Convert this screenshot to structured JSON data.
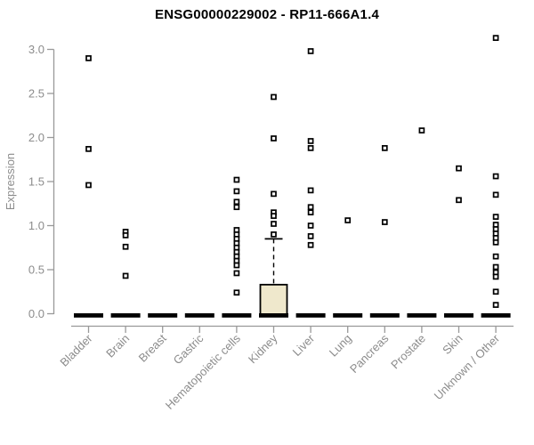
{
  "chart_data": {
    "type": "boxplot-scatter",
    "title": "ENSG00000229002 - RP11-666A1.4",
    "ylabel": "Expression",
    "ylim": [
      0.0,
      3.0
    ],
    "ytick_labels": [
      "0.0",
      "0.5",
      "1.0",
      "1.5",
      "2.0",
      "2.5",
      "3.0"
    ],
    "grid": false,
    "legend": "none",
    "categories": [
      "Bladder",
      "Brain",
      "Breast",
      "Gastric",
      "Hematopoietic cells",
      "Kidney",
      "Liver",
      "Lung",
      "Pancreas",
      "Prostate",
      "Skin",
      "Unknown / Other"
    ],
    "medians": [
      0,
      0,
      0,
      0,
      0,
      0,
      0,
      0,
      0,
      0,
      0,
      0
    ],
    "points": [
      [
        2.9,
        1.87,
        1.46
      ],
      [
        0.93,
        0.89,
        0.76,
        0.43
      ],
      [],
      [],
      [
        1.52,
        1.39,
        1.27,
        1.21,
        0.95,
        0.9,
        0.85,
        0.8,
        0.75,
        0.7,
        0.65,
        0.6,
        0.55,
        0.46,
        0.24
      ],
      [
        2.46,
        1.99,
        1.36,
        1.15,
        1.11,
        1.02,
        0.9
      ],
      [
        2.98,
        1.96,
        1.88,
        1.4,
        1.21,
        1.15,
        1.0,
        0.88,
        0.78
      ],
      [
        1.06
      ],
      [
        1.88,
        1.04
      ],
      [
        2.08
      ],
      [
        1.65,
        1.29
      ],
      [
        3.13,
        1.56,
        1.35,
        1.1,
        1.01,
        0.96,
        0.91,
        0.86,
        0.81,
        0.65,
        0.53,
        0.47,
        0.42,
        0.25,
        0.1
      ]
    ],
    "box": {
      "category": "Kidney",
      "q1": 0.0,
      "median": 0.0,
      "q3": 0.33,
      "whisker_high": 0.85,
      "whisker_style": "dashed"
    },
    "colors": {
      "title": "#000000",
      "axis": "#999999",
      "tick_text": "#8C8C8C",
      "marker_border": "#000000",
      "marker_fill": "#FFFFFF",
      "median_bar": "#000000",
      "box_fill": "#EFE8CC",
      "box_border": "#000000",
      "background": "#FFFFFF"
    }
  }
}
